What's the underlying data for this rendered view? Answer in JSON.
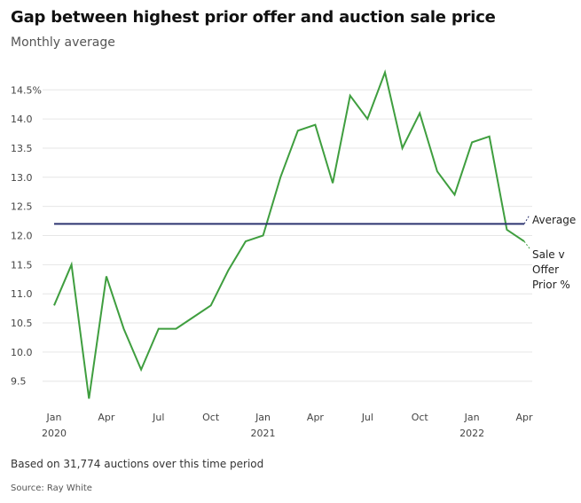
{
  "header": {
    "title": "Gap between highest prior offer and auction sale price",
    "subtitle": "Monthly average"
  },
  "footer": {
    "note": "Based on 31,774 auctions over this time period",
    "source": "Source: Ray White"
  },
  "chart_data": {
    "type": "line",
    "title": "Gap between highest prior offer and auction sale price",
    "subtitle": "Monthly average",
    "xlabel": "",
    "ylabel": "",
    "ylim": [
      9.1,
      14.9
    ],
    "yticks": [
      9.5,
      10.0,
      10.5,
      11.0,
      11.5,
      12.0,
      12.5,
      13.0,
      13.5,
      14.0,
      14.5
    ],
    "ytick_labels": [
      "9.5",
      "10.0",
      "10.5",
      "11.0",
      "11.5",
      "12.0",
      "12.5",
      "13.0",
      "13.5",
      "14.0",
      "14.5%"
    ],
    "x": [
      "2020-01",
      "2020-02",
      "2020-03",
      "2020-04",
      "2020-05",
      "2020-06",
      "2020-07",
      "2020-08",
      "2020-09",
      "2020-10",
      "2020-11",
      "2020-12",
      "2021-01",
      "2021-02",
      "2021-03",
      "2021-04",
      "2021-05",
      "2021-06",
      "2021-07",
      "2021-08",
      "2021-09",
      "2021-10",
      "2021-11",
      "2021-12",
      "2022-01",
      "2022-02",
      "2022-03",
      "2022-04"
    ],
    "xticks": [
      {
        "x": "2020-01",
        "label": "Jan",
        "year": "2020"
      },
      {
        "x": "2020-04",
        "label": "Apr",
        "year": ""
      },
      {
        "x": "2020-07",
        "label": "Jul",
        "year": ""
      },
      {
        "x": "2020-10",
        "label": "Oct",
        "year": ""
      },
      {
        "x": "2021-01",
        "label": "Jan",
        "year": "2021"
      },
      {
        "x": "2021-04",
        "label": "Apr",
        "year": ""
      },
      {
        "x": "2021-07",
        "label": "Jul",
        "year": ""
      },
      {
        "x": "2021-10",
        "label": "Oct",
        "year": ""
      },
      {
        "x": "2022-01",
        "label": "Jan",
        "year": "2022"
      },
      {
        "x": "2022-04",
        "label": "Apr",
        "year": ""
      }
    ],
    "grid": true,
    "series": [
      {
        "name": "Sale v Offer Prior %",
        "label_lines": [
          "Sale v",
          "Offer",
          "Prior %"
        ],
        "color": "#3f9e3f",
        "values": [
          10.8,
          11.5,
          9.2,
          11.3,
          10.4,
          9.7,
          10.4,
          10.4,
          10.6,
          10.8,
          11.4,
          11.9,
          12.0,
          13.0,
          13.8,
          13.9,
          12.9,
          14.4,
          14.0,
          14.8,
          13.5,
          14.1,
          13.1,
          12.7,
          13.6,
          13.7,
          12.1,
          11.9
        ]
      },
      {
        "name": "Average",
        "label_lines": [
          "Average"
        ],
        "color": "#2d3470",
        "values": [
          12.2,
          12.2,
          12.2,
          12.2,
          12.2,
          12.2,
          12.2,
          12.2,
          12.2,
          12.2,
          12.2,
          12.2,
          12.2,
          12.2,
          12.2,
          12.2,
          12.2,
          12.2,
          12.2,
          12.2,
          12.2,
          12.2,
          12.2,
          12.2,
          12.2,
          12.2,
          12.2,
          12.2
        ]
      }
    ]
  }
}
